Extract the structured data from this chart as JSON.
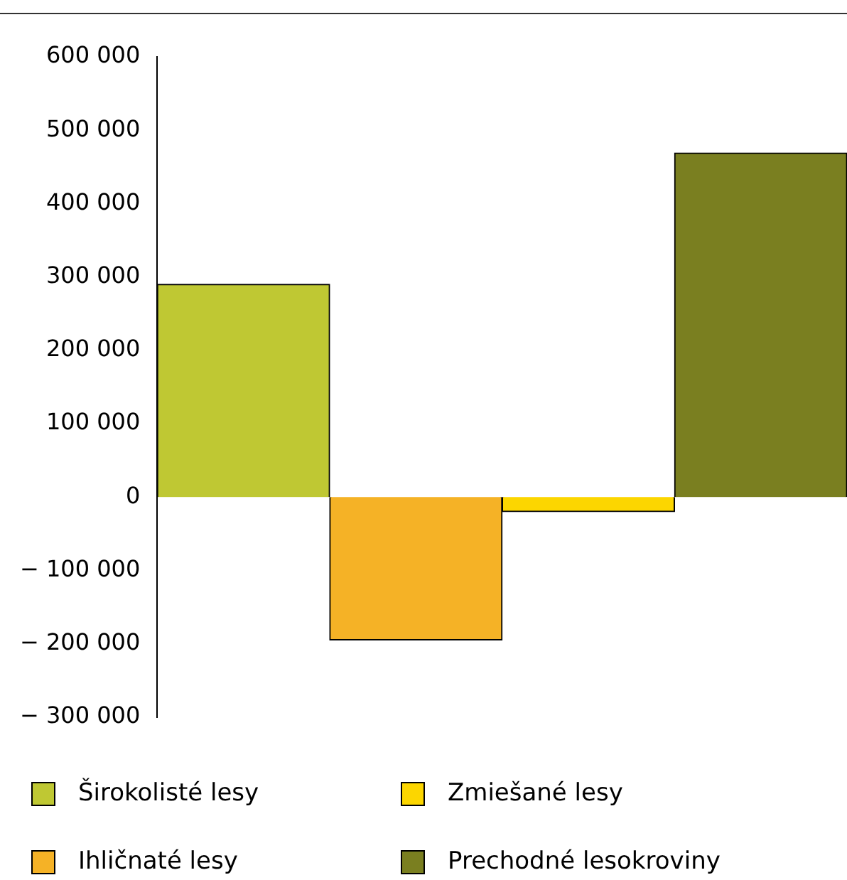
{
  "chart_data": {
    "type": "bar",
    "categories": [
      null
    ],
    "series": [
      {
        "name": "Širokolisté lesy",
        "color": "#bfc833",
        "values": [
          290000
        ]
      },
      {
        "name": "Ihličnaté lesy",
        "color": "#f5b226",
        "values": [
          -195000
        ]
      },
      {
        "name": "Zmiešané lesy",
        "color": "#fcd600",
        "values": [
          -20000
        ]
      },
      {
        "name": "Prechodné lesokroviny",
        "color": "#7a7f20",
        "values": [
          469000
        ]
      }
    ],
    "ylim": [
      -300000,
      600000
    ],
    "yticks": [
      {
        "value": -300000,
        "label": "− 300 000"
      },
      {
        "value": -200000,
        "label": "− 200 000"
      },
      {
        "value": -100000,
        "label": "− 100 000"
      },
      {
        "value": 0,
        "label": "0"
      },
      {
        "value": 100000,
        "label": "100 000"
      },
      {
        "value": 200000,
        "label": "200 000"
      },
      {
        "value": 300000,
        "label": "300 000"
      },
      {
        "value": 400000,
        "label": "400 000"
      },
      {
        "value": 500000,
        "label": "500 000"
      },
      {
        "value": 600000,
        "label": "600 000"
      }
    ],
    "grid": false,
    "legend": "bottom"
  }
}
